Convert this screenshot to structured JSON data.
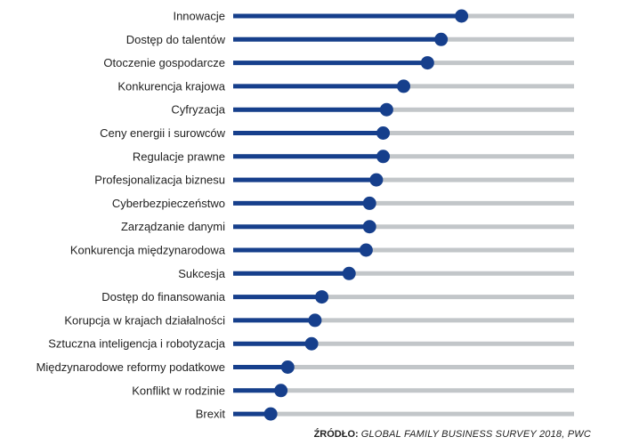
{
  "chart_data": {
    "type": "lollipop",
    "title": "",
    "xlabel": "",
    "ylabel": "",
    "xlim": [
      0,
      100
    ],
    "categories": [
      "Innowacje",
      "Dostęp do talentów",
      "Otoczenie gospodarcze",
      "Konkurencja krajowa",
      "Cyfryzacja",
      "Ceny energii i surowców",
      "Regulacje prawne",
      "Profesjonalizacja biznesu",
      "Cyberbezpieczeństwo",
      "Zarządzanie danymi",
      "Konkurencja międzynarodowa",
      "Sukcesja",
      "Dostęp do finansowania",
      "Korupcja w krajach działalności",
      "Sztuczna inteligencja i robotyzacja",
      "Międzynarodowe reformy podatkowe",
      "Konflikt w rodzinie",
      "Brexit"
    ],
    "values": [
      67,
      61,
      57,
      50,
      45,
      44,
      44,
      42,
      40,
      40,
      39,
      34,
      26,
      24,
      23,
      16,
      14,
      11
    ],
    "colors": {
      "filled": "#163f8c",
      "track": "#c2c6c9",
      "dot": "#163f8c"
    },
    "grid": false,
    "legend": "none"
  },
  "source": {
    "label": "ŹRÓDŁO:",
    "text": "Global Family Business Survey 2018, PwC"
  }
}
